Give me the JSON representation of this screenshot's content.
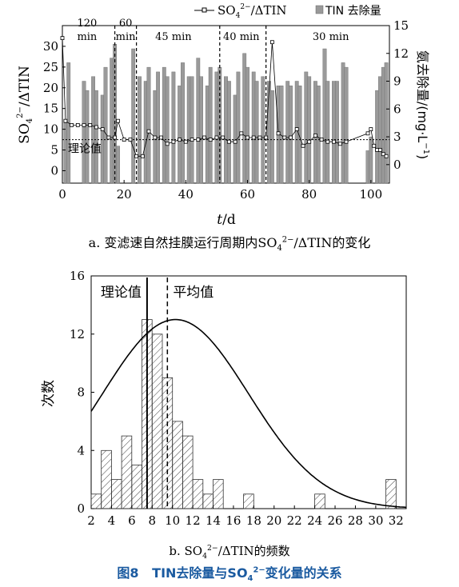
{
  "caption_a": "a. 变滤速自然挂膜运行周期内SO₄²⁻/ΔTIN的变化",
  "caption_b": "b. SO₄²⁻/ΔTIN的频数",
  "figure_title": "图8   TIN去除量与SO₄²⁻变化量的关系",
  "chart_data": [
    {
      "type": "bar",
      "subtype": "bar+line, dual axis",
      "xlabel": "t/d",
      "ylabel_left": "SO₄²⁻/ΔTIN",
      "ylabel_right": "氨去除量/(mg·L⁻¹)",
      "xlim": [
        0,
        106
      ],
      "ylim_left": [
        -3,
        35
      ],
      "ylim_right": [
        -2,
        15
      ],
      "xticks": [
        0,
        20,
        40,
        60,
        80,
        100
      ],
      "yticks_left": [
        0,
        5,
        10,
        15,
        20,
        25,
        30
      ],
      "yticks_right": [
        0,
        3,
        6,
        9,
        12,
        15
      ],
      "legend": [
        "SO₄²⁻/ΔTIN",
        "TIN去除量"
      ],
      "legend_position": "top",
      "phase_boundaries": [
        17,
        24,
        51,
        66
      ],
      "phase_labels": [
        {
          "text": "120",
          "text2": "min",
          "x": 8
        },
        {
          "text": "60",
          "text2": "min",
          "x": 20.5
        },
        {
          "text": "45 min",
          "x": 36
        },
        {
          "text": "40 min",
          "x": 58
        },
        {
          "text": "30 min",
          "x": 87
        }
      ],
      "theory_line": {
        "label": "理论值",
        "y": 7.5
      },
      "bars": {
        "name": "TIN去除量",
        "x": [
          1,
          2,
          7,
          8,
          10,
          11,
          13,
          14,
          16,
          17,
          18,
          23,
          25,
          27,
          28,
          30,
          31,
          33,
          34,
          36,
          38,
          39,
          41,
          42,
          44,
          45,
          47,
          48,
          50,
          51,
          53,
          54,
          56,
          57,
          59,
          60,
          62,
          63,
          65,
          67,
          68,
          70,
          71,
          73,
          74,
          76,
          77,
          79,
          80,
          82,
          83,
          85,
          86,
          88,
          89,
          91,
          92,
          99,
          100,
          102,
          103,
          104,
          105
        ],
        "values": [
          4.5,
          11,
          9,
          8,
          9.5,
          8,
          7.5,
          10.5,
          11.5,
          13,
          2,
          12.5,
          9.5,
          9,
          10.5,
          8,
          10,
          10.5,
          9.5,
          10,
          8.5,
          11,
          9.5,
          9.5,
          11.5,
          9.5,
          8.5,
          10.5,
          10,
          10.5,
          9.5,
          9,
          7.5,
          10,
          12,
          10.5,
          10,
          9,
          9.5,
          9,
          8,
          8.5,
          8.5,
          9,
          8.5,
          9,
          8.5,
          10,
          9.5,
          9,
          8.5,
          12.5,
          9,
          9,
          9,
          11,
          10.5,
          1.5,
          3,
          8,
          9.5,
          10.5,
          11
        ]
      },
      "line": {
        "name": "SO₄²⁻/ΔTIN",
        "x": [
          0,
          1,
          3,
          5,
          7,
          9,
          11,
          13,
          15,
          17,
          18,
          20,
          22,
          24,
          26,
          28,
          30,
          32,
          34,
          36,
          38,
          40,
          42,
          44,
          46,
          48,
          50,
          52,
          54,
          56,
          58,
          60,
          62,
          64,
          66,
          68,
          70,
          72,
          74,
          76,
          78,
          80,
          82,
          84,
          86,
          88,
          90,
          92,
          99,
          100,
          101,
          102,
          103,
          104,
          105
        ],
        "values": [
          32,
          12,
          11,
          11,
          11,
          11,
          10.5,
          10,
          8,
          8,
          12,
          7.5,
          7.5,
          3.5,
          3.5,
          9.5,
          8,
          8,
          6.5,
          7,
          7.5,
          7,
          7.5,
          7.5,
          8,
          7.5,
          8,
          8,
          7,
          7,
          9,
          8,
          8,
          8,
          8,
          31,
          9,
          8,
          8,
          10,
          6,
          7,
          8.5,
          7.5,
          7,
          7,
          6.5,
          7,
          9,
          10,
          6,
          5,
          5,
          4,
          3.5
        ]
      }
    },
    {
      "type": "bar",
      "subtype": "histogram with fitted normal curve",
      "xlabel": "SO₄²⁻/ΔTIN的频数",
      "ylabel": "次数",
      "xlim": [
        2,
        33
      ],
      "ylim": [
        0,
        16
      ],
      "xticks": [
        2,
        4,
        6,
        8,
        10,
        12,
        14,
        16,
        18,
        20,
        22,
        24,
        26,
        28,
        30,
        32
      ],
      "yticks": [
        0,
        4,
        8,
        12,
        16
      ],
      "bin_width": 1,
      "bin_starts": [
        2,
        3,
        4,
        5,
        6,
        7,
        8,
        9,
        10,
        11,
        12,
        13,
        14,
        17,
        24,
        31
      ],
      "values": [
        1,
        4,
        2,
        5,
        3,
        13,
        12,
        9,
        6,
        5,
        2,
        1,
        2,
        1,
        1,
        2
      ],
      "reference_lines": [
        {
          "label": "理论值",
          "x": 7.5,
          "style": "solid"
        },
        {
          "label": "平均值",
          "x": 9.5,
          "style": "dashed"
        }
      ],
      "fit_curve": {
        "mean": 10.3,
        "sd": 7.2,
        "peak": 13
      }
    }
  ]
}
